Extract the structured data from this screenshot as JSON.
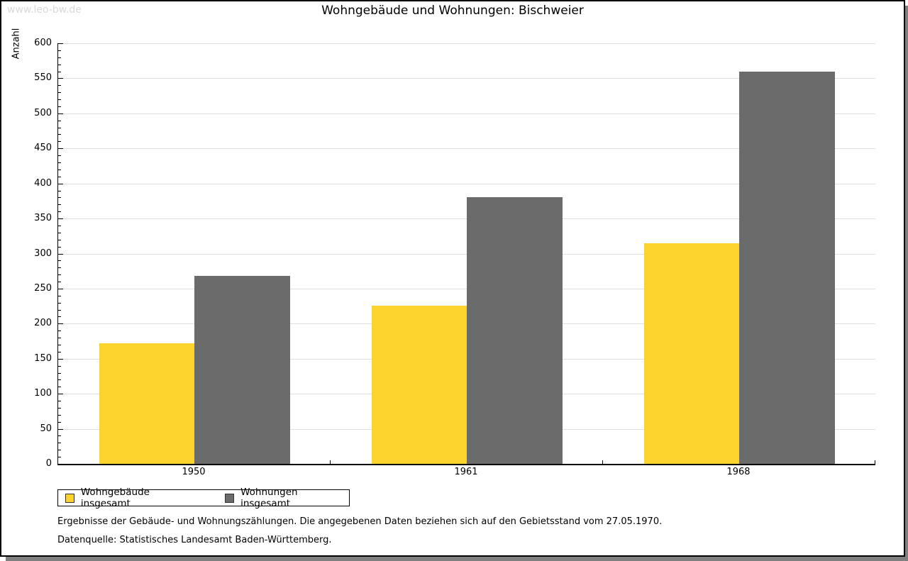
{
  "watermark": "www.leo-bw.de",
  "header": {
    "title": "Wohngebäude und Wohnungen: Bischweier"
  },
  "chart_data": {
    "type": "bar",
    "title": "Wohngebäude und Wohnungen: Bischweier",
    "categories": [
      "1950",
      "1961",
      "1968"
    ],
    "series": [
      {
        "name": "Wohngebäude insgesamt",
        "color": "#FDD32E",
        "values": [
          172,
          226,
          315
        ]
      },
      {
        "name": "Wohnungen insgesamt",
        "color": "#6B6B6B",
        "values": [
          268,
          380,
          560
        ]
      }
    ],
    "xlabel": "",
    "ylabel": "Anzahl",
    "ylim": [
      0,
      600
    ],
    "ytick_major": 50,
    "ytick_minor": 10,
    "grid": true,
    "gridline_color": "#E0E0E0",
    "legend_position": "bottom-left"
  },
  "footer": {
    "note": "Ergebnisse der Gebäude- und Wohnungszählungen. Die angegebenen Daten beziehen sich auf den Gebietsstand vom 27.05.1970.",
    "source": "Datenquelle: Statistisches Landesamt Baden-Württemberg."
  },
  "frame": {
    "border_color": "#000000",
    "shadow_color": "#808080",
    "watermark_color": "#D9D9D9"
  }
}
